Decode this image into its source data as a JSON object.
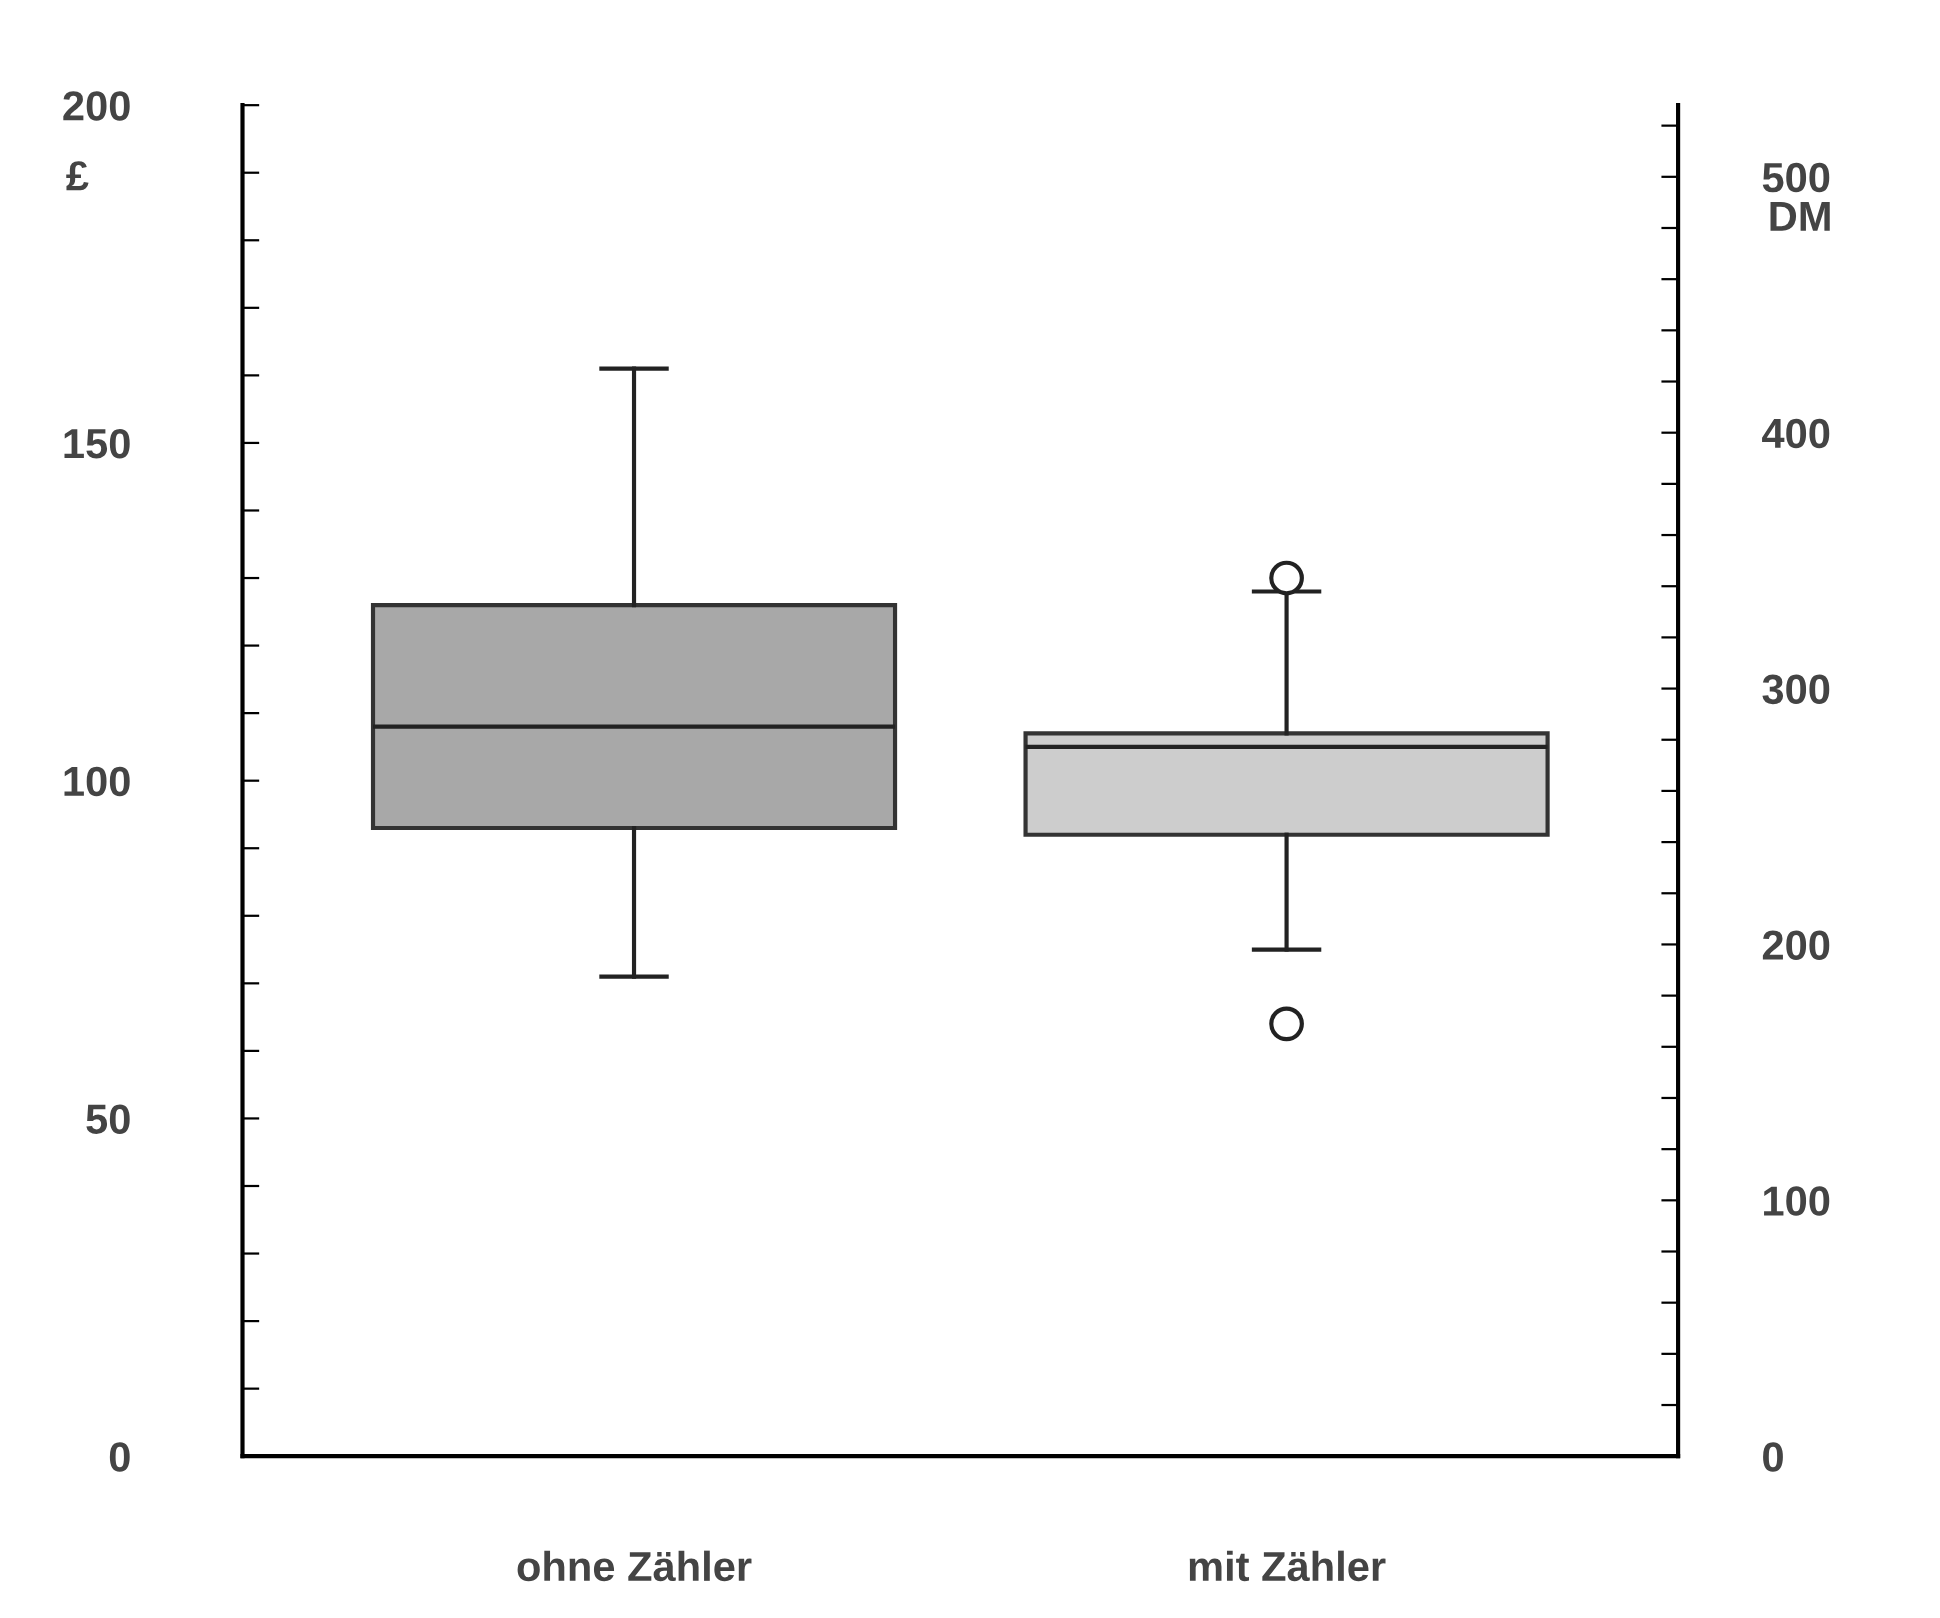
{
  "chart_data": {
    "type": "box",
    "categories": [
      "ohne Zähler",
      "mit Zähler"
    ],
    "boxes": [
      {
        "low": 71,
        "q1": 93,
        "median": 108,
        "q3": 126,
        "high": 161
      },
      {
        "low": 75,
        "q1": 92,
        "median": 105,
        "q3": 107,
        "high": 128,
        "outliers": [
          130,
          64
        ]
      }
    ],
    "colors": [
      "#a8a8a8",
      "#cdcdcd"
    ],
    "ylabel": "£",
    "y2label": "DM",
    "ylim": [
      0,
      200
    ],
    "yticks": [
      0,
      {
        "value": 10,
        "label": null
      },
      {
        "value": 20,
        "label": null
      },
      {
        "value": 30,
        "label": null
      },
      {
        "value": 40,
        "label": null
      },
      50,
      {
        "value": 60,
        "label": null
      },
      {
        "value": 70,
        "label": null
      },
      {
        "value": 80,
        "label": null
      },
      {
        "value": 90,
        "label": null
      },
      100,
      {
        "value": 110,
        "label": null
      },
      {
        "value": 120,
        "label": null
      },
      {
        "value": 130,
        "label": null
      },
      {
        "value": 140,
        "label": null
      },
      150,
      {
        "value": 160,
        "label": null
      },
      {
        "value": 170,
        "label": null
      },
      {
        "value": 180,
        "label": null
      },
      {
        "value": 190,
        "label": null
      },
      200
    ],
    "y2lim": [
      0,
      528
    ],
    "y2ticks": [
      0,
      {
        "value": 20,
        "label": null
      },
      {
        "value": 40,
        "label": null
      },
      {
        "value": 60,
        "label": null
      },
      {
        "value": 80,
        "label": null
      },
      100,
      {
        "value": 120,
        "label": null
      },
      {
        "value": 140,
        "label": null
      },
      {
        "value": 160,
        "label": null
      },
      {
        "value": 180,
        "label": null
      },
      200,
      {
        "value": 220,
        "label": null
      },
      {
        "value": 240,
        "label": null
      },
      {
        "value": 260,
        "label": null
      },
      {
        "value": 280,
        "label": null
      },
      300,
      {
        "value": 320,
        "label": null
      },
      {
        "value": 340,
        "label": null
      },
      {
        "value": 360,
        "label": null
      },
      {
        "value": 380,
        "label": null
      },
      400,
      {
        "value": 420,
        "label": null
      },
      {
        "value": 440,
        "label": null
      },
      {
        "value": 460,
        "label": null
      },
      {
        "value": 480,
        "label": null
      },
      500,
      {
        "value": 520,
        "label": null
      }
    ],
    "grid": false,
    "legend": false
  }
}
